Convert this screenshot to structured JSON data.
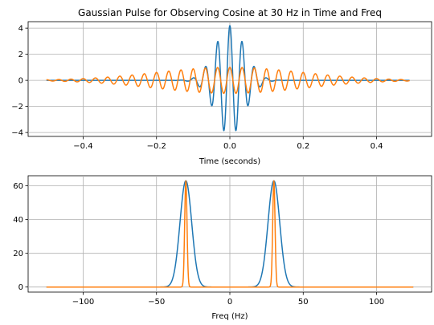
{
  "chart_data": [
    {
      "type": "line",
      "title": "Gaussian Pulse for Observing Cosine at 30 Hz in Time and Freq",
      "xlabel": "Time (seconds)",
      "ylabel": "",
      "xlim": [
        -0.55,
        0.55
      ],
      "ylim": [
        -4.3,
        4.5
      ],
      "xticks": [
        -0.4,
        -0.2,
        0.0,
        0.2,
        0.4
      ],
      "xtick_labels": [
        "−0.4",
        "−0.2",
        "0.0",
        "0.2",
        "0.4"
      ],
      "yticks": [
        -4,
        -2,
        0,
        2,
        4
      ],
      "ytick_labels": [
        "−4",
        "−2",
        "0",
        "2",
        "4"
      ],
      "grid": true,
      "series": [
        {
          "color": "#1f77b4",
          "formula": "A*exp(-t^2/(2*sigma^2))*cos(2*pi*f*t)",
          "x_range": [
            -0.5,
            0.49
          ],
          "params": {
            "A": 4.2,
            "sigma": 0.04,
            "f": 30
          }
        },
        {
          "color": "#ff7f0e",
          "formula": "A*exp(-t^2/(2*sigma^2))*cos(2*pi*f*t)",
          "x_range": [
            -0.5,
            0.49
          ],
          "params": {
            "A": 1.0,
            "sigma": 0.2,
            "f": 30
          }
        }
      ]
    },
    {
      "type": "line",
      "title": "",
      "xlabel": "Freq (Hz)",
      "ylabel": "",
      "xlim": [
        -137.5,
        137.5
      ],
      "ylim": [
        -3,
        66
      ],
      "xticks": [
        -100,
        -50,
        0,
        50,
        100
      ],
      "xtick_labels": [
        "−100",
        "−50",
        "0",
        "50",
        "100"
      ],
      "yticks": [
        0,
        20,
        40,
        60
      ],
      "ytick_labels": [
        "0",
        "20",
        "40",
        "60"
      ],
      "grid": true,
      "series": [
        {
          "color": "#1f77b4",
          "formula": "sum of gaussian peaks",
          "x_range": [
            -125,
            125
          ],
          "params": {
            "peaks": [
              {
                "center": -30,
                "height": 63,
                "sigma": 4
              },
              {
                "center": 30,
                "height": 63,
                "sigma": 4
              }
            ]
          }
        },
        {
          "color": "#ff7f0e",
          "formula": "sum of gaussian peaks",
          "x_range": [
            -125,
            125
          ],
          "params": {
            "peaks": [
              {
                "center": -30,
                "height": 63,
                "sigma": 0.8
              },
              {
                "center": 30,
                "height": 63,
                "sigma": 0.8
              }
            ]
          }
        }
      ]
    }
  ]
}
